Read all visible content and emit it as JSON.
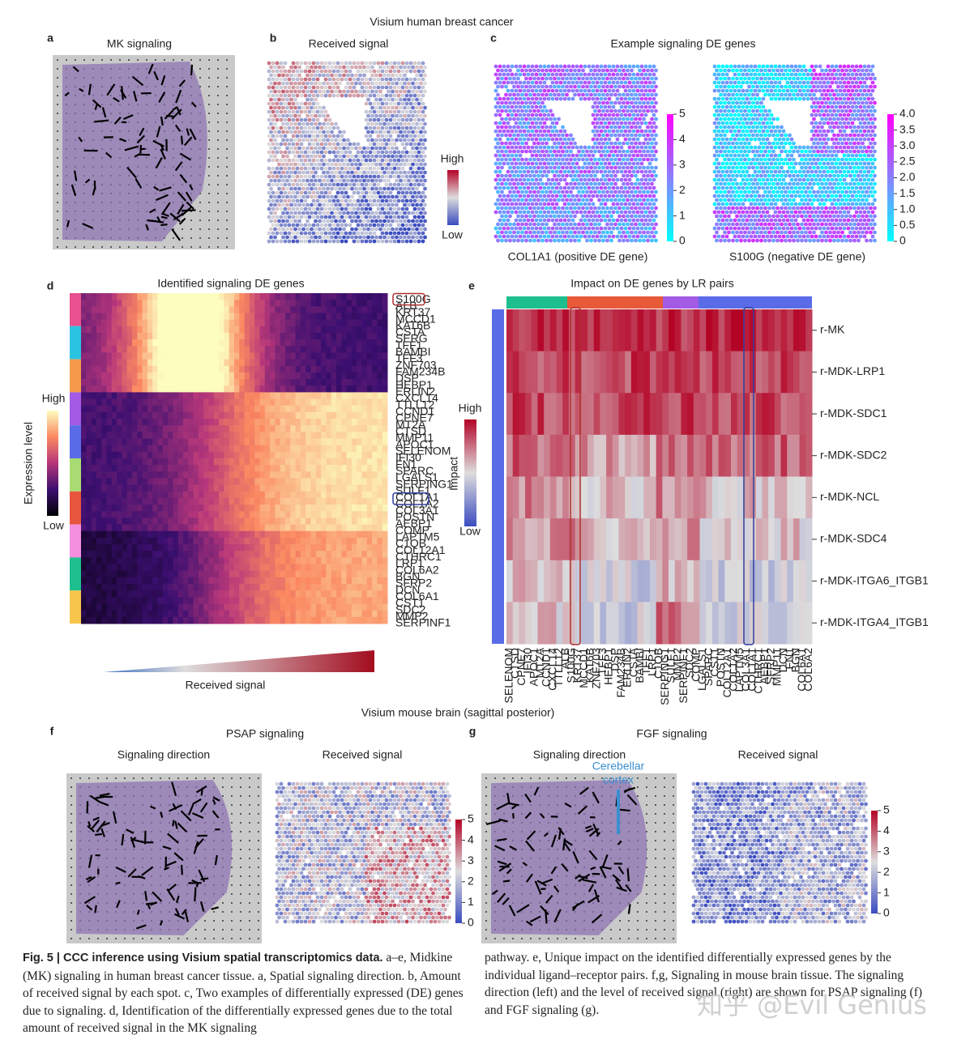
{
  "header": {
    "top": "Visium human breast cancer",
    "bottom": "Visium mouse brain (sagittal posterior)"
  },
  "panel_a": {
    "label": "a",
    "title": "MK signaling"
  },
  "panel_b": {
    "label": "b",
    "title": "Received signal",
    "high": "High",
    "low": "Low"
  },
  "panel_c": {
    "label": "c",
    "title": "Example signaling DE genes",
    "left": {
      "caption": "COL1A1 (positive DE gene)",
      "ticks": [
        "5",
        "4",
        "3",
        "2",
        "1",
        "0"
      ]
    },
    "right": {
      "caption": "S100G (negative DE gene)",
      "ticks": [
        "4.0",
        "3.5",
        "3.0",
        "2.5",
        "2.0",
        "1.5",
        "1.0",
        "0.5",
        "0"
      ]
    }
  },
  "panel_d": {
    "label": "d",
    "title": "Identified signaling DE genes",
    "high": "High",
    "low": "Low",
    "legend": "Expression level",
    "axis": "Received signal",
    "genes": [
      "S100G",
      "ALB",
      "KRT37",
      "MCCD1",
      "KAT6B",
      "CSTA",
      "SERG",
      "TFF1",
      "BAMBI",
      "TFF3",
      "ZNF703",
      "FAM234B",
      "DSP",
      "HEBP1",
      "ERLIN2",
      "CXCL14",
      "TTLL12",
      "CCND1",
      "CPNE7",
      "MT2A",
      "CTSD",
      "MMP11",
      "APOC1",
      "SELENOM",
      "IFI30",
      "FN1",
      "SPARC",
      "LGALS1",
      "SERPING1",
      "SULF1",
      "COL1A1",
      "COL1A2",
      "COL3A1",
      "POSTN",
      "AEBP1",
      "COMP",
      "LAPTM5",
      "C1QB",
      "COL12A1",
      "CTHRC1",
      "LRP1",
      "COL6A2",
      "BGN",
      "SFRP2",
      "DCN",
      "COL6A1",
      "CST1",
      "SDC2",
      "MMP2",
      "SERPINF1"
    ]
  },
  "panel_e": {
    "label": "e",
    "title": "Impact on DE genes by LR pairs",
    "high": "High",
    "low": "Low",
    "legend": "Impact",
    "rows": [
      "r-MK",
      "r-MDK-LRP1",
      "r-MDK-SDC1",
      "r-MDK-SDC2",
      "r-MDK-NCL",
      "r-MDK-SDC4",
      "r-MDK-ITGA6_ITGB1",
      "r-MDK-ITGA4_ITGB1"
    ],
    "genes": [
      "SELENOM",
      "CTSD",
      "CPNE7",
      "IFI30",
      "APOC1",
      "MT2A",
      "CCND1",
      "CXCL14",
      "TTLL12",
      "ALB",
      "S100G",
      "KRT37",
      "MCCD1",
      "KAT6B",
      "ZNF703",
      "TFF3",
      "HEBP1",
      "DSP",
      "FAM234B",
      "ERLIN2",
      "CSTA",
      "BAMBI",
      "TFF1",
      "LRP1",
      "C1QB",
      "SERPING1",
      "SULF1",
      "MMP2",
      "SERPINF1",
      "SDC2",
      "COMP",
      "LGALS1",
      "SPARC",
      "CST1",
      "POSTN",
      "COL12A1",
      "COL1A2",
      "LAPTM5",
      "COL3A1",
      "COL1A1",
      "CTHRC1",
      "AEBP1",
      "SFRP2",
      "MMP11",
      "DCN",
      "FN1",
      "BGN",
      "COL6A1",
      "COL6A2"
    ]
  },
  "panel_f": {
    "label": "f",
    "title": "PSAP signaling",
    "left": "Signaling direction",
    "right": "Received signal",
    "ticks": [
      "5",
      "4",
      "3",
      "2",
      "1",
      "0"
    ]
  },
  "panel_g": {
    "label": "g",
    "title": "FGF signaling",
    "left": "Signaling direction",
    "right": "Received signal",
    "annotation": [
      "Cerebellar",
      "cortex"
    ],
    "ticks": [
      "5",
      "4",
      "3",
      "2",
      "1",
      "0"
    ]
  },
  "caption": {
    "heading": "Fig. 5 | CCC inference using Visium spatial transcriptomics data.",
    "left": "a–e, Midkine (MK) signaling in human breast cancer tissue. a, Spatial signaling direction. b, Amount of received signal by each spot. c, Two examples of differentially expressed (DE) genes due to signaling. d, Identification of the differentially expressed genes due to the total amount of received signal in the MK signaling",
    "right": "pathway. e, Unique impact on the identified differentially expressed genes by the individual ligand–receptor pairs. f,g, Signaling in mouse brain tissue. The signaling direction (left) and the level of received signal (right) are shown for PSAP signaling (f) and FGF signaling (g)."
  },
  "watermark": "知乎 @Evil Genius"
}
